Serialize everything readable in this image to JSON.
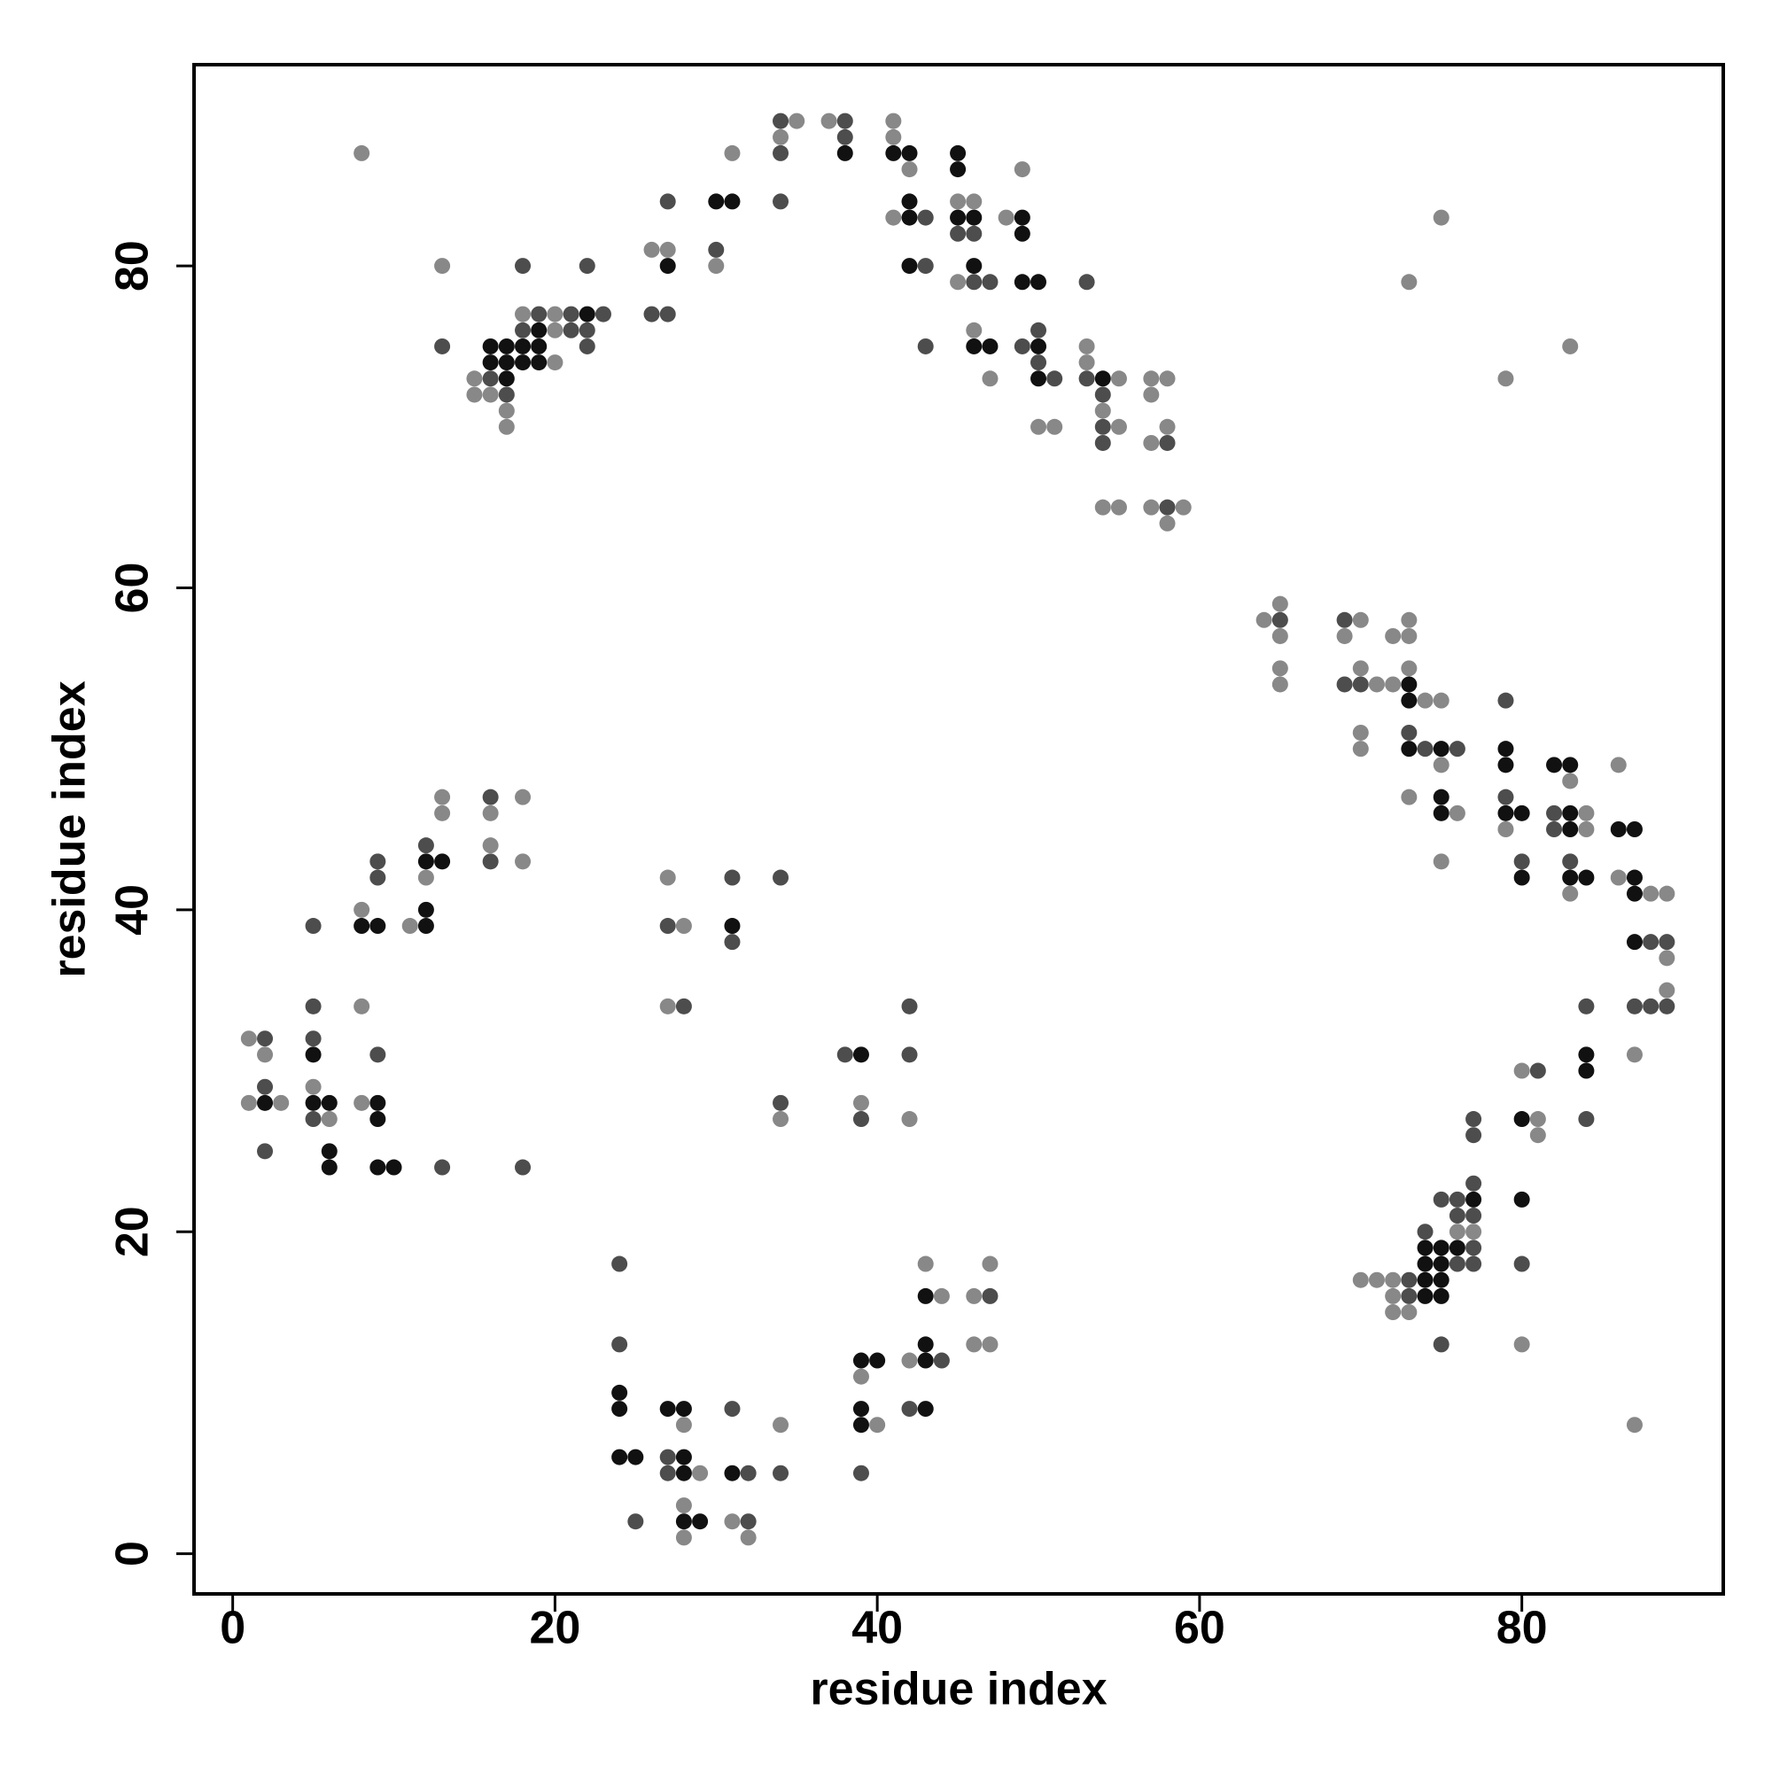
{
  "chart_data": {
    "type": "scatter",
    "xlabel": "residue index",
    "ylabel": "residue index",
    "xlim": [
      -2.4,
      92.5
    ],
    "ylim": [
      -2.5,
      92.5
    ],
    "xticks": [
      0,
      20,
      40,
      60,
      80
    ],
    "yticks": [
      0,
      20,
      40,
      60,
      80
    ],
    "series": [
      {
        "color": "#111111",
        "x": [
          16,
          17,
          18,
          19,
          16,
          17,
          18,
          19,
          17,
          19,
          22,
          27,
          30,
          31,
          38,
          41,
          42,
          42,
          42,
          42,
          45,
          45,
          45,
          46,
          46,
          49,
          49,
          49,
          50,
          46,
          47,
          50,
          50,
          54,
          73,
          73,
          73,
          75,
          75,
          75,
          79,
          79,
          79,
          80,
          80,
          82,
          83,
          83,
          83,
          83,
          84,
          86,
          87,
          87,
          87,
          87,
          84,
          84,
          80,
          80,
          77,
          74,
          75,
          76,
          74,
          75,
          74,
          75,
          74,
          75,
          12,
          13,
          8,
          9,
          12,
          12,
          5,
          2,
          5,
          6,
          9,
          9,
          6,
          6,
          9,
          10,
          31,
          39,
          24,
          24,
          24,
          25,
          27,
          28,
          28,
          28,
          28,
          29,
          31,
          39,
          40,
          39,
          39,
          43,
          43,
          43,
          43
        ],
        "values": [
          75,
          75,
          75,
          75,
          74,
          74,
          74,
          74,
          73,
          76,
          77,
          80,
          84,
          84,
          87,
          87,
          87,
          84,
          83,
          80,
          87,
          86,
          83,
          83,
          80,
          83,
          82,
          79,
          79,
          75,
          75,
          75,
          73,
          73,
          54,
          53,
          50,
          50,
          47,
          46,
          50,
          49,
          46,
          46,
          42,
          49,
          49,
          46,
          45,
          42,
          42,
          45,
          45,
          42,
          41,
          38,
          31,
          30,
          27,
          22,
          22,
          19,
          19,
          19,
          18,
          18,
          17,
          17,
          16,
          16,
          43,
          43,
          39,
          39,
          40,
          39,
          31,
          28,
          28,
          28,
          28,
          27,
          25,
          24,
          24,
          24,
          39,
          31,
          10,
          9,
          6,
          6,
          9,
          9,
          6,
          5,
          2,
          2,
          5,
          12,
          12,
          9,
          8,
          12,
          13,
          9,
          16
        ]
      },
      {
        "color": "#4d4d4d",
        "x": [
          18,
          22,
          13,
          16,
          17,
          18,
          21,
          22,
          19,
          21,
          23,
          22,
          26,
          27,
          27,
          30,
          34,
          34,
          34,
          38,
          38,
          43,
          43,
          43,
          45,
          46,
          46,
          47,
          49,
          50,
          50,
          51,
          53,
          53,
          54,
          54,
          54,
          58,
          58,
          65,
          69,
          69,
          70,
          73,
          74,
          76,
          79,
          79,
          80,
          82,
          82,
          83,
          88,
          89,
          87,
          88,
          89,
          84,
          84,
          81,
          80,
          77,
          77,
          77,
          76,
          75,
          76,
          77,
          74,
          77,
          76,
          77,
          73,
          73,
          75,
          16,
          16,
          12,
          9,
          9,
          5,
          5,
          2,
          5,
          9,
          2,
          5,
          2,
          13,
          18,
          27,
          28,
          31,
          31,
          34,
          34,
          38,
          39,
          42,
          42,
          24,
          24,
          25,
          27,
          27,
          31,
          32,
          32,
          34,
          39,
          44,
          42,
          47
        ],
        "values": [
          80,
          80,
          75,
          73,
          72,
          76,
          76,
          76,
          77,
          77,
          77,
          75,
          77,
          77,
          84,
          81,
          84,
          87,
          89,
          89,
          88,
          83,
          80,
          75,
          82,
          82,
          79,
          79,
          75,
          76,
          74,
          73,
          79,
          73,
          72,
          70,
          69,
          69,
          65,
          58,
          58,
          54,
          54,
          51,
          50,
          50,
          53,
          47,
          43,
          46,
          45,
          43,
          38,
          38,
          34,
          34,
          34,
          34,
          27,
          30,
          18,
          27,
          26,
          23,
          22,
          22,
          21,
          21,
          20,
          19,
          18,
          18,
          17,
          16,
          13,
          47,
          43,
          44,
          43,
          42,
          39,
          34,
          32,
          32,
          31,
          29,
          27,
          25,
          24,
          24,
          39,
          34,
          42,
          38,
          42,
          28,
          31,
          27,
          34,
          31,
          18,
          13,
          2,
          6,
          5,
          9,
          5,
          2,
          5,
          5,
          12,
          9,
          16
        ]
      },
      {
        "color": "#888888",
        "x": [
          8,
          13,
          20,
          15,
          15,
          16,
          17,
          17,
          20,
          18,
          20,
          26,
          27,
          30,
          31,
          34,
          35,
          37,
          41,
          41,
          42,
          41,
          45,
          46,
          45,
          48,
          49,
          46,
          47,
          50,
          51,
          53,
          53,
          55,
          54,
          55,
          54,
          55,
          57,
          58,
          57,
          57,
          58,
          57,
          59,
          58,
          64,
          65,
          65,
          65,
          65,
          70,
          69,
          71,
          72,
          70,
          70,
          70,
          72,
          73,
          73,
          73,
          74,
          75,
          75,
          73,
          76,
          75,
          79,
          83,
          84,
          84,
          83,
          86,
          86,
          88,
          89,
          89,
          89,
          87,
          80,
          81,
          81,
          80,
          87,
          76,
          77,
          72,
          71,
          70,
          72,
          72,
          73,
          75,
          73,
          79,
          83,
          13,
          13,
          16,
          18,
          16,
          18,
          12,
          8,
          11,
          8,
          1,
          2,
          1,
          3,
          5,
          6,
          8,
          27,
          28,
          27,
          34,
          39,
          42,
          28,
          29,
          28,
          28,
          31,
          32,
          34,
          39,
          40,
          42,
          44,
          43,
          46,
          47,
          46,
          47
        ],
        "values": [
          87,
          80,
          74,
          73,
          72,
          72,
          71,
          70,
          76,
          77,
          77,
          81,
          81,
          80,
          87,
          88,
          89,
          89,
          89,
          88,
          86,
          83,
          84,
          84,
          79,
          83,
          86,
          76,
          73,
          70,
          70,
          75,
          74,
          73,
          71,
          70,
          65,
          65,
          73,
          73,
          72,
          69,
          70,
          65,
          65,
          64,
          58,
          59,
          57,
          55,
          54,
          58,
          57,
          54,
          54,
          55,
          51,
          50,
          57,
          58,
          57,
          55,
          53,
          53,
          49,
          47,
          46,
          43,
          45,
          48,
          46,
          45,
          41,
          49,
          42,
          41,
          41,
          37,
          35,
          31,
          30,
          27,
          26,
          13,
          8,
          20,
          20,
          17,
          17,
          17,
          16,
          15,
          15,
          83,
          79,
          73,
          75,
          47,
          46,
          46,
          47,
          44,
          43,
          42,
          40,
          39,
          34,
          32,
          31,
          28,
          28,
          29,
          27,
          28,
          42,
          39,
          34,
          27,
          28,
          27,
          8,
          5,
          3,
          1,
          2,
          1,
          8,
          11,
          8,
          12,
          16,
          18,
          16,
          18,
          13,
          13
        ]
      }
    ]
  }
}
